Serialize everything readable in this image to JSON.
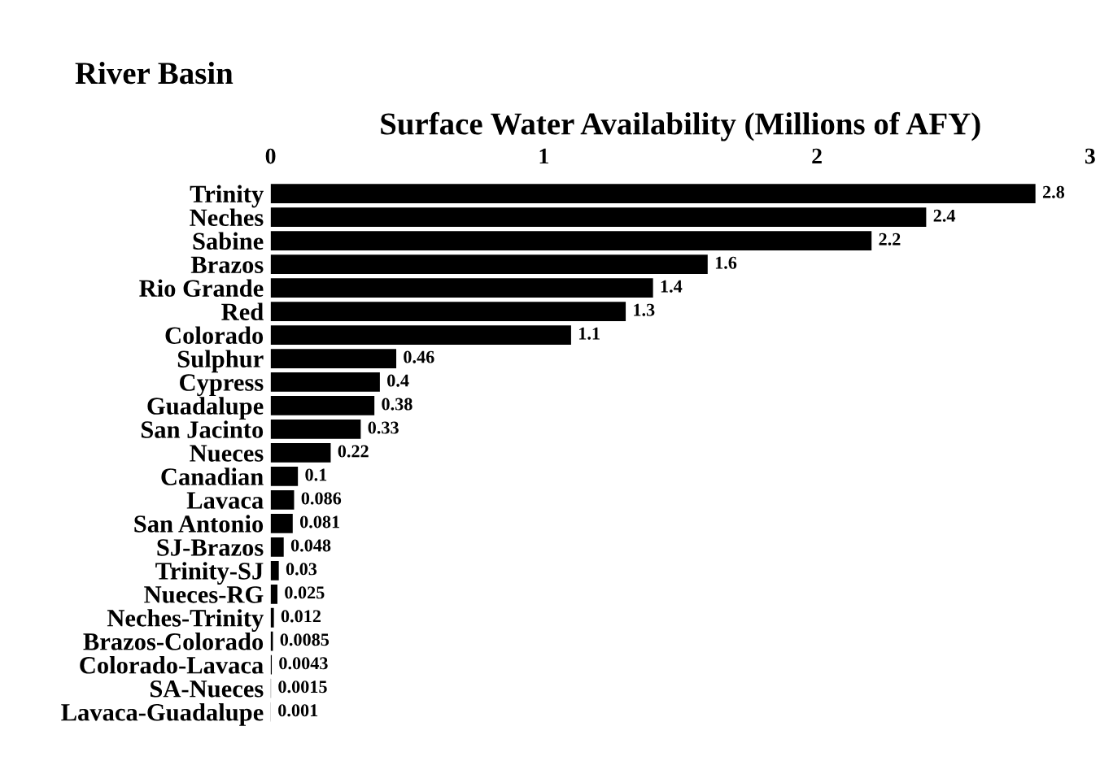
{
  "chart_data": {
    "type": "bar",
    "orientation": "horizontal",
    "title": "River Basin",
    "xlabel": "Surface Water Availability (Millions of AFY)",
    "categories": [
      "Trinity",
      "Neches",
      "Sabine",
      "Brazos",
      "Rio Grande",
      "Red",
      "Colorado",
      "Sulphur",
      "Cypress",
      "Guadalupe",
      "San Jacinto",
      "Nueces",
      "Canadian",
      "Lavaca",
      "San Antonio",
      "SJ-Brazos",
      "Trinity-SJ",
      "Nueces-RG",
      "Neches-Trinity",
      "Brazos-Colorado",
      "Colorado-Lavaca",
      "SA-Nueces",
      "Lavaca-Guadalupe"
    ],
    "values": [
      2.8,
      2.4,
      2.2,
      1.6,
      1.4,
      1.3,
      1.1,
      0.46,
      0.4,
      0.38,
      0.33,
      0.22,
      0.1,
      0.086,
      0.081,
      0.048,
      0.03,
      0.025,
      0.012,
      0.0085,
      0.0043,
      0.0015,
      0.001
    ],
    "color": "#000000",
    "xlim": [
      0,
      3
    ],
    "xticks": [
      0,
      1,
      2,
      3
    ],
    "data_labels": true,
    "grid": false,
    "legend": false
  }
}
